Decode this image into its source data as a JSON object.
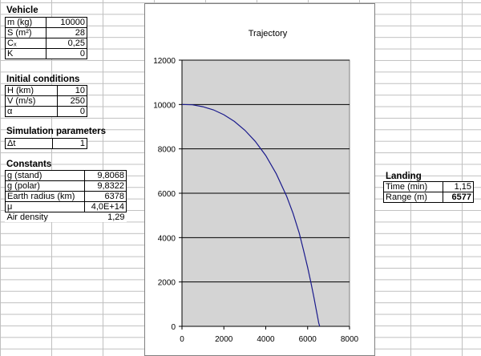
{
  "vehicle": {
    "title": "Vehicle",
    "rows": [
      {
        "label": "m (kg)",
        "value": "10000"
      },
      {
        "label": "S (m²)",
        "value": "28"
      },
      {
        "label": "Cₓ",
        "value": "0,25"
      },
      {
        "label": "K",
        "value": "0"
      }
    ]
  },
  "initial_conditions": {
    "title": "Initial conditions",
    "rows": [
      {
        "label": "H (km)",
        "value": "10"
      },
      {
        "label": "V (m/s)",
        "value": "250"
      },
      {
        "label": "α",
        "value": "0"
      }
    ]
  },
  "simulation": {
    "title": "Simulation parameters",
    "rows": [
      {
        "label": "Δt",
        "value": "1"
      }
    ]
  },
  "constants": {
    "title": "Constants",
    "rows": [
      {
        "label": "g (stand)",
        "value": "9,8068"
      },
      {
        "label": "g (polar)",
        "value": "9,8322"
      },
      {
        "label": "Earth radius (km)",
        "value": "6378"
      },
      {
        "label": "μ",
        "value": "4,0E+14"
      },
      {
        "label": "Air density",
        "value": "1,29"
      }
    ]
  },
  "landing": {
    "title": "Landing",
    "time_label": "Time (min)",
    "time_value": "1,15",
    "range_label": "Range (m)",
    "range_value": "6577"
  },
  "chart_data": {
    "type": "line",
    "title": "Trajectory",
    "xlabel": "",
    "ylabel": "",
    "xlim": [
      0,
      8000
    ],
    "ylim": [
      0,
      12000
    ],
    "xticks": [
      0,
      2000,
      4000,
      6000,
      8000
    ],
    "yticks": [
      0,
      2000,
      4000,
      6000,
      8000,
      10000,
      12000
    ],
    "grid": "horizontal",
    "plot_background": "#d4d4d4",
    "line_color": "#1a1a8c",
    "series": [
      {
        "x": [
          0,
          500,
          1000,
          1500,
          2000,
          2500,
          3000,
          3500,
          4000,
          4500,
          5000,
          5300,
          5600,
          5800,
          6000,
          6150,
          6300,
          6400,
          6480,
          6530,
          6577
        ],
        "y": [
          10000,
          9985,
          9900,
          9760,
          9540,
          9240,
          8840,
          8340,
          7700,
          6880,
          5860,
          5100,
          4200,
          3450,
          2650,
          2000,
          1300,
          800,
          400,
          150,
          0
        ]
      }
    ]
  }
}
